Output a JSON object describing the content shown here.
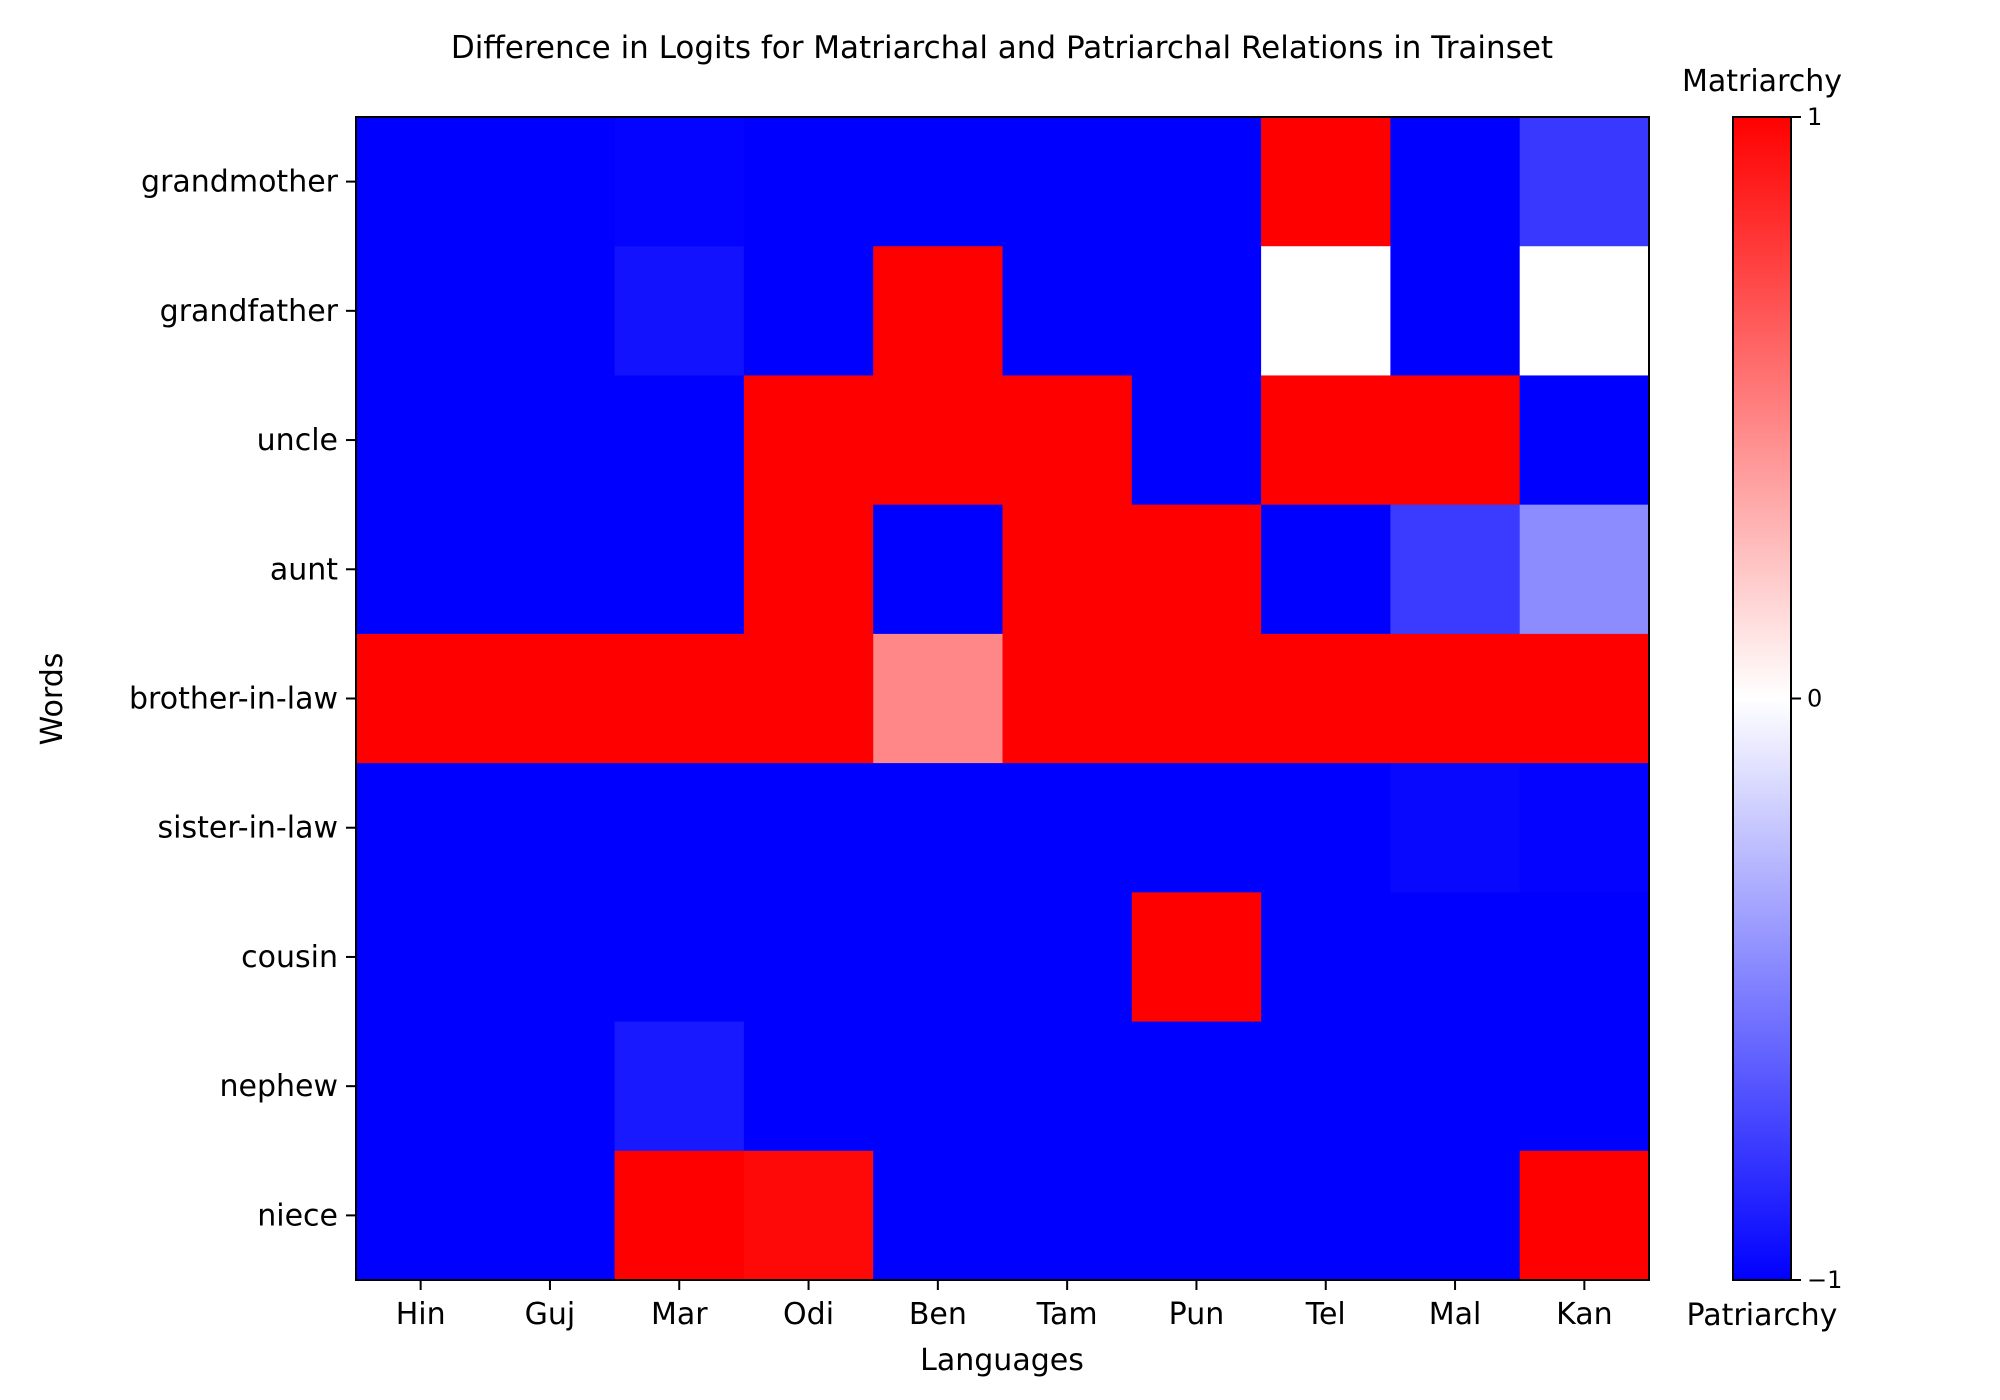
{
  "chart_data": {
    "type": "heatmap",
    "title": "Difference in Logits for Matriarchal and Patriarchal Relations in Trainset",
    "xlabel": "Languages",
    "ylabel": "Words",
    "x_categories": [
      "Hin",
      "Guj",
      "Mar",
      "Odi",
      "Ben",
      "Tam",
      "Pun",
      "Tel",
      "Mal",
      "Kan"
    ],
    "y_categories": [
      "grandmother",
      "grandfather",
      "uncle",
      "aunt",
      "brother-in-law",
      "sister-in-law",
      "cousin",
      "nephew",
      "niece"
    ],
    "values": [
      [
        -1,
        -1,
        -0.99,
        -1,
        -1,
        -1,
        -1,
        1,
        -1,
        -0.78
      ],
      [
        -1,
        -1,
        -0.93,
        -1,
        1,
        -1,
        -1,
        0,
        -1,
        0
      ],
      [
        -1,
        -1,
        -1,
        1,
        1,
        1,
        -1,
        1,
        1,
        -1
      ],
      [
        -1,
        -1,
        -1,
        1,
        -1,
        1,
        1,
        -1,
        -0.77,
        -0.45
      ],
      [
        1,
        1,
        1,
        1,
        0.47,
        1,
        1,
        1,
        1,
        1
      ],
      [
        -1,
        -1,
        -1,
        -1,
        -1,
        -1,
        -1,
        -1,
        -0.97,
        -0.99
      ],
      [
        -1,
        -1,
        -1,
        -1,
        -1,
        -1,
        1,
        -1,
        -1,
        -1
      ],
      [
        -1,
        -1,
        -0.9,
        -1,
        -1,
        -1,
        -1,
        -1,
        -1,
        -1
      ],
      [
        -1,
        -1,
        1,
        0.97,
        -1,
        -1,
        -1,
        -1,
        -1,
        1
      ]
    ],
    "colorbar": {
      "colormap": "bwr",
      "min": -1,
      "max": 1,
      "ticks": [
        "−1",
        "0",
        "1"
      ],
      "top_label": "Matriarchy",
      "bottom_label": "Patriarchy"
    },
    "grid": false
  }
}
